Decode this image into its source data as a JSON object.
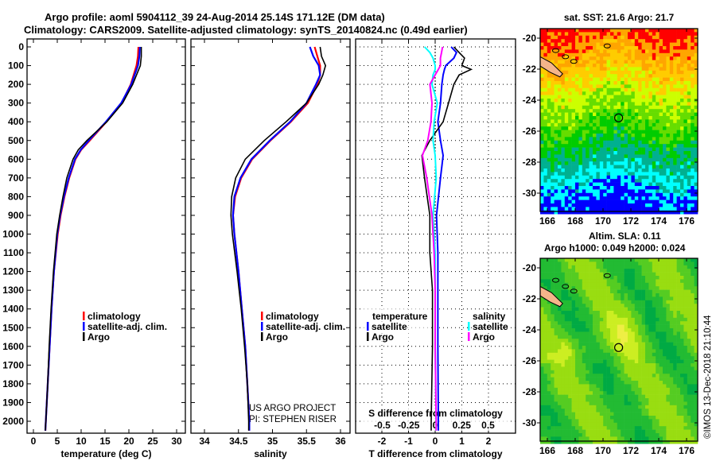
{
  "title_line1": "Argo profile: aoml 5904112_39 24-Aug-2014 25.14S 171.12E (DM data)",
  "title_line2": "Climatology: CARS2009. Satellite-adjusted climatology: synTS_20140824.nc (0.49d earlier)",
  "colors": {
    "climatology": "#ff0000",
    "satellite": "#0000ff",
    "argo": "#000000",
    "sal_satellite": "#00ffff",
    "sal_argo": "#ff00ff"
  },
  "credits": [
    "US ARGO PROJECT",
    "PI: STEPHEN RISER"
  ],
  "copyright": "©IMOS 13-Dec-2018 21:10:44",
  "chart_data": [
    {
      "type": "line",
      "name": "temperature-profile",
      "xlabel": "temperature (deg C)",
      "xlim": [
        -2,
        32
      ],
      "xticks": [
        "0",
        "5",
        "10",
        "15",
        "20",
        "25",
        "30"
      ],
      "ylim": [
        2050,
        -40
      ],
      "yticks": [
        "0",
        "100",
        "200",
        "300",
        "400",
        "500",
        "600",
        "700",
        "800",
        "900",
        "1000",
        "1100",
        "1200",
        "1300",
        "1400",
        "1500",
        "1600",
        "1700",
        "1800",
        "1900",
        "2000"
      ],
      "depth": [
        0,
        50,
        100,
        150,
        200,
        300,
        400,
        500,
        550,
        600,
        700,
        800,
        900,
        1000,
        1200,
        1400,
        1600,
        1800,
        2000,
        2050
      ],
      "legend": [
        "climatology",
        "satellite-adj. clim.",
        "Argo"
      ],
      "series": [
        {
          "name": "climatology",
          "values": [
            22,
            21.9,
            21.6,
            21,
            20.4,
            18.5,
            15.3,
            11.8,
            10,
            8.8,
            7.5,
            6.5,
            5.7,
            5.1,
            4.3,
            3.8,
            3.4,
            3.0,
            2.6,
            2.5
          ]
        },
        {
          "name": "satellite-adj. clim.",
          "values": [
            22.3,
            22.2,
            21.9,
            21.2,
            20.5,
            18.4,
            15.2,
            11.6,
            9.9,
            8.7,
            7.4,
            6.4,
            5.6,
            5.0,
            4.3,
            3.8,
            3.4,
            3.0,
            2.6,
            2.5
          ]
        },
        {
          "name": "Argo",
          "values": [
            22.6,
            22.6,
            22.4,
            21.6,
            20.8,
            18.7,
            15.4,
            11.2,
            9.4,
            8.3,
            7.0,
            6.2,
            5.5,
            4.9,
            4.2,
            3.7,
            3.3,
            3.0,
            2.6,
            2.5
          ]
        }
      ]
    },
    {
      "type": "line",
      "name": "salinity-profile",
      "xlabel": "salinity",
      "xlim": [
        33.8,
        36.1
      ],
      "xticks": [
        "34",
        "34.5",
        "35",
        "35.5",
        "36"
      ],
      "depth": [
        0,
        50,
        100,
        150,
        200,
        300,
        400,
        500,
        600,
        700,
        800,
        900,
        1000,
        1200,
        1400,
        1600,
        1800,
        2000,
        2050
      ],
      "legend": [
        "climatology",
        "satellite-adj. clim.",
        "Argo"
      ],
      "series": [
        {
          "name": "climatology",
          "values": [
            35.62,
            35.66,
            35.7,
            35.7,
            35.66,
            35.52,
            35.27,
            34.97,
            34.7,
            34.54,
            34.45,
            34.42,
            34.44,
            34.5,
            34.55,
            34.6,
            34.63,
            34.66,
            34.66
          ]
        },
        {
          "name": "satellite-adj. clim.",
          "values": [
            35.55,
            35.6,
            35.68,
            35.7,
            35.64,
            35.5,
            35.26,
            34.96,
            34.69,
            34.53,
            34.44,
            34.42,
            34.44,
            34.5,
            34.55,
            34.6,
            34.63,
            34.66,
            34.66
          ]
        },
        {
          "name": "Argo",
          "values": [
            35.7,
            35.72,
            35.78,
            35.74,
            35.68,
            35.5,
            35.2,
            34.88,
            34.6,
            34.46,
            34.4,
            34.39,
            34.41,
            34.48,
            34.54,
            34.59,
            34.63,
            34.65,
            34.65
          ]
        }
      ]
    },
    {
      "type": "line",
      "name": "difference-profile",
      "xlabel": "T difference from climatology",
      "xlim": [
        -3,
        3
      ],
      "xticks": [
        "-2",
        "-1",
        "0",
        "1",
        "2"
      ],
      "x2label": "S difference from climatology",
      "x2lim": [
        -0.75,
        0.75
      ],
      "x2ticks": [
        "-0.5",
        "-0.25",
        "0",
        "0.25",
        "0.5"
      ],
      "depth": [
        0,
        30,
        60,
        100,
        120,
        150,
        200,
        300,
        400,
        500,
        580,
        700,
        900,
        1100,
        1300,
        1600,
        2000,
        2050
      ],
      "legend_temperature": {
        "title": "temperature",
        "items": [
          "satellite",
          "Argo"
        ]
      },
      "legend_salinity": {
        "title": "salinity",
        "items": [
          "satellite",
          "Argo"
        ]
      },
      "series": [
        {
          "name": "T satellite",
          "axis": "T",
          "values": [
            0.6,
            0.8,
            0.7,
            0.4,
            0.35,
            0.3,
            0.25,
            0.2,
            0.1,
            0.2,
            0.3,
            0.2,
            0.05,
            0.1,
            0.1,
            0.1,
            0.12,
            0.12
          ]
        },
        {
          "name": "T Argo",
          "axis": "T",
          "values": [
            0.7,
            0.9,
            1.1,
            1.0,
            1.35,
            0.9,
            0.7,
            0.5,
            0.3,
            -0.2,
            -0.5,
            -0.4,
            -0.2,
            -0.2,
            -0.1,
            -0.1,
            -0.15,
            -0.15
          ]
        },
        {
          "name": "S satellite",
          "axis": "S",
          "values": [
            -0.1,
            -0.05,
            -0.02,
            0.0,
            0.0,
            -0.02,
            -0.03,
            0.02,
            -0.01,
            -0.02,
            0.0,
            0.01,
            -0.02,
            0.0,
            0.0,
            0.0,
            0.01,
            0.01
          ]
        },
        {
          "name": "S Argo",
          "axis": "S",
          "values": [
            0.07,
            0.06,
            0.05,
            0.05,
            0.03,
            0.0,
            -0.05,
            -0.03,
            -0.04,
            -0.07,
            -0.12,
            -0.08,
            -0.03,
            -0.01,
            0.0,
            0.0,
            0.01,
            0.01
          ]
        }
      ]
    },
    {
      "type": "heatmap",
      "name": "sst-map",
      "title": "sat. SST: 21.6 Argo: 21.7",
      "xlim": [
        165.5,
        176.8
      ],
      "ylim": [
        -31.2,
        -19.7
      ],
      "xticks": [
        "166",
        "168",
        "170",
        "172",
        "174",
        "176"
      ],
      "yticks": [
        "-20",
        "-22",
        "-24",
        "-26",
        "-28",
        "-30"
      ],
      "palette": [
        "#0000ff",
        "#00ffff",
        "#00b090",
        "#00cc00",
        "#66dd00",
        "#ccff00",
        "#ffcc00",
        "#ffa500",
        "#ff0000"
      ],
      "argo_position": {
        "lon": 171.12,
        "lat": -25.14
      }
    },
    {
      "type": "heatmap",
      "name": "sla-map",
      "title": "Altim. SLA: 0.11",
      "subtitle": "Argo h1000: 0.049 h2000: 0.024",
      "xlim": [
        165.5,
        176.8
      ],
      "ylim": [
        -31.2,
        -19.7
      ],
      "xticks": [
        "166",
        "168",
        "170",
        "172",
        "174",
        "176"
      ],
      "yticks": [
        "-20",
        "-22",
        "-24",
        "-26",
        "-28",
        "-30"
      ],
      "palette": [
        "#00aa44",
        "#22bb33",
        "#55cc22",
        "#99dd11",
        "#ccee22",
        "#eeee44"
      ],
      "argo_position": {
        "lon": 171.12,
        "lat": -25.14
      }
    }
  ]
}
